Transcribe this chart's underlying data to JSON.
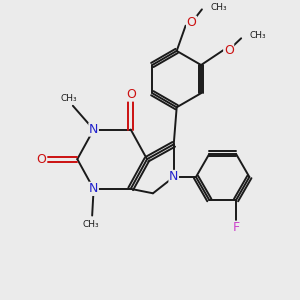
{
  "bg_color": "#ebebeb",
  "bond_color": "#1a1a1a",
  "N_color": "#2222cc",
  "O_color": "#cc1111",
  "F_color": "#cc44cc",
  "line_width": 1.4,
  "figsize": [
    3.0,
    3.0
  ],
  "dpi": 100,
  "xlim": [
    0,
    10
  ],
  "ylim": [
    0,
    10
  ]
}
